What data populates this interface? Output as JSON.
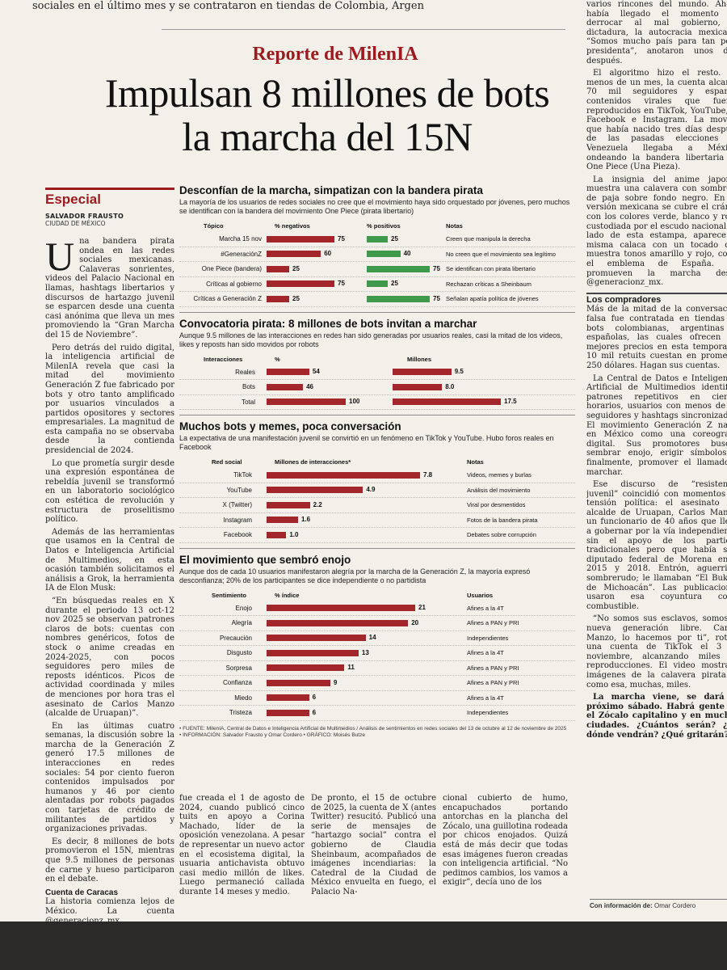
{
  "top_text": "sociales en el último mes y se contrataron en tiendas de Colombia, Argen",
  "kicker": "Reporte de MilenIA",
  "headline": "Impulsan 8 millones de bots la marcha del 15N",
  "section": "Especial",
  "byline": "SALVADOR FRAUSTO",
  "city": "CIUDAD DE MÉXICO",
  "left_column": {
    "dropcap": "U",
    "p1": "na bandera pirata ondea en las redes sociales mexicanas. Calaveras sonrientes, videos del Palacio Nacional en llamas, hashtags libertarios y discursos de hartazgo juvenil se esparcen desde una cuenta casi anónima que lleva un mes promoviendo la “Gran Marcha del 15 de Noviembre”.",
    "p2": "Pero detrás del ruido digital, la inteligencia artificial de MilenIA revela que casi la mitad del movimiento Generación Z fue fabricado por bots y otro tanto amplificado por usuarios vinculados a partidos opositores y sectores empresariales. La magnitud de esta campaña no se observaba desde la contienda presidencial de 2024.",
    "p3": "Lo que prometía surgir desde una expresión espontánea de rebeldía juvenil se transformó en un laboratorio sociológico con estética de revolución y estructura de proselitismo político.",
    "p4": "Además de las herramientas que usamos en la Central de Datos e Inteligencia Artificial de Multimedios, en esta ocasión también solicitamos el análisis a Grok, la herramienta IA de Elon Musk:",
    "p5": "“En búsquedas reales en X durante el periodo 13 oct-12 nov 2025 se observan patrones claros de bots: cuentas con nombres genéricos, fotos de stock o anime creadas en 2024-2025, con pocos seguidores pero miles de reposts idénticos. Picos de actividad coordinada y miles de menciones por hora tras el asesinato de Carlos Manzo (alcalde de Uruapan)”.",
    "p6": "En las últimas cuatro semanas, la discusión sobre la marcha de la Generación Z generó 17.5 millones de interacciones en redes sociales: 54 por ciento fueron contenidos impulsados por humanos y 46 por ciento alentadas por robots pagados con tarjetas de crédito de militantes de partidos y organizaciones privadas.",
    "p7": "Es decir, 8 millones de bots promovieron el 15N, mientras que 9.5 millones de personas de carne y hueso participaron en el debate.",
    "subhead": "Cuenta de Caracas",
    "p8": "La historia comienza lejos de México. La cuenta @generacionz_mx"
  },
  "chart1": {
    "title": "Desconfían de la marcha, simpatizan con la bandera pirata",
    "desc": "La mayoría de los usuarios de redes sociales no cree que el movimiento haya sido orquestado por jóvenes, pero muchos se identifican con la bandera del movimiento One Piece (pirata libertario)",
    "h_topic": "Tópico",
    "h_neg": "% negativos",
    "h_pos": "% positivos",
    "h_notes": "Notas"
  },
  "chart2": {
    "title": "Convocatoria pirata: 8 millones de bots invitan a marchar",
    "desc": "Aunque 9.5 millones de las interacciones en redes han sido generadas por usuarios reales, casi la mitad de los videos, likes y reposts han sido movidos por robots",
    "h_label": "Interacciones",
    "h_pct": "%",
    "h_mill": "Millones"
  },
  "chart3": {
    "title": "Muchos bots y memes, poca conversación",
    "desc": "La expectativa de una manifestación juvenil se convirtió en un fenómeno en TikTok y YouTube. Hubo foros reales en Facebook",
    "h_label": "Red social",
    "h_val": "Millones de interacciones*",
    "h_notes": "Notas"
  },
  "chart4": {
    "title": "El movimiento que sembró enojo",
    "desc": "Aunque dos de cada 10 usuarios manifestaron alegría por la marcha de la Generación Z, la mayoría expresó desconfianza; 20% de los participantes se dice independiente o no partidista",
    "h_label": "Sentimiento",
    "h_val": "% índice",
    "h_users": "Usuarios"
  },
  "chart_data": [
    {
      "type": "bar",
      "categories": [
        "Marcha 15 nov",
        "#GeneraciónZ",
        "One Piece (bandera)",
        "Críticas al gobierno",
        "Críticas a Generación Z"
      ],
      "series": [
        {
          "name": "% negativos",
          "values": [
            75,
            60,
            25,
            75,
            25
          ]
        },
        {
          "name": "% positivos",
          "values": [
            25,
            40,
            75,
            25,
            75
          ]
        }
      ],
      "notes": [
        "Creen que manipula la derecha",
        "No creen que el movimiento sea legítimo",
        "Se identifican con pirata libertario",
        "Rechazan críticas a Sheinbaum",
        "Señalan apatía política de jóvenes"
      ],
      "colors": [
        "#a2262a",
        "#3e9a4a"
      ]
    },
    {
      "type": "bar",
      "categories": [
        "Reales",
        "Bots",
        "Total"
      ],
      "series": [
        {
          "name": "%",
          "values": [
            54,
            46,
            100
          ]
        },
        {
          "name": "Millones",
          "values": [
            9.5,
            8.0,
            17.5
          ]
        }
      ],
      "value_labels_2": [
        "9.5",
        "8.0",
        "17.5"
      ],
      "colors": [
        "#a2262a"
      ]
    },
    {
      "type": "bar",
      "categories": [
        "TikTok",
        "YouTube",
        "X (Twitter)",
        "Instagram",
        "Facebook"
      ],
      "series": [
        {
          "name": "Millones de interacciones*",
          "values": [
            7.8,
            4.9,
            2.2,
            1.6,
            1.0
          ]
        }
      ],
      "value_labels": [
        "7.8",
        "4.9",
        "2.2",
        "1.6",
        "1.0"
      ],
      "notes": [
        "Videos, memes y burlas",
        "Análisis del movimiento",
        "Viral por desmentidos",
        "Fotos de la bandera pirata",
        "Debates sobre corrupción"
      ],
      "colors": [
        "#a2262a"
      ]
    },
    {
      "type": "bar",
      "categories": [
        "Enojo",
        "Alegría",
        "Precaución",
        "Disgusto",
        "Sorpresa",
        "Confianza",
        "Miedo",
        "Tristeza"
      ],
      "series": [
        {
          "name": "% índice",
          "values": [
            21,
            20,
            14,
            13,
            11,
            9,
            6,
            6
          ]
        }
      ],
      "users": [
        "Afines a la 4T",
        "Afines a PAN y PRI",
        "Independientes",
        "Afines a la 4T",
        "Afines a PAN y PRI",
        "Afines a PAN y PRI",
        "Afines a la 4T",
        "Independientes"
      ],
      "colors": [
        "#a2262a"
      ]
    }
  ],
  "sources": {
    "line1": "• FUENTE: MilenIA, Central de Datos e Inteligencia Artificial de Multimedios / Análisis de sentimientos en redes sociales del 13 de octubre al 12 de noviembre de 2025",
    "line2": "• INFORMACIÓN: Salvador Frausto y Omar Cordero • GRÁFICO: Moisés Butze"
  },
  "bottom_col2": "fue creada el 1 de agosto de 2024, cuando publicó cinco tuits en apoyo a Corina Machado, líder de la oposición venezolana. A pesar de representar un nuevo actor en el ecosistema digital, la usuaria antichavista obtuvo casi medio millón de likes. Luego permaneció callada durante 14 meses y medio.",
  "bottom_col3": "De pronto, el 15 de octubre de 2025, la cuenta de X (antes Twitter) resucitó. Publicó una serie de mensajes de “hartazgo social” contra el gobierno de Claudia Sheinbaum, acompañados de imágenes incendiarias: la Catedral de la Ciudad de México envuelta en fuego, el Palacio Na-",
  "bottom_col4": "cional cubierto de humo, encapuchados portando antorchas en la plancha del Zócalo, una guillotina rodeada por chicos enojados. Quizá está de más decir que todas esas imágenes fueron creadas con inteligencia artificial. “No pedimos cambios, los vamos a exigir”, decía uno de los",
  "right_column": {
    "p1": "varios rincones del mundo. Ahora había llegado el momento de derrocar al mal gobierno, la dictadura, la autocracia mexicana. “Somos mucho país para tan poca presidenta”, anotaron unos días después.",
    "p2": "El algoritmo hizo el resto. En menos de un mes, la cuenta alcanzó 70 mil seguidores y esparció contenidos virales que fueron reproducidos en TikTok, YouTube, X, Facebook e Instagram. La movida que había nacido tres días después de las pasadas elecciones en Venezuela llegaba a México, ondeando la bandera libertaria de One Piece (Una Pieza).",
    "p3": "La insignia del anime japonés muestra una calavera con sombrero de paja sobre fondo negro. En su versión mexicana se cubre el cráneo con los colores verde, blanco y rojo, custodiada por el escudo nacional. Al lado de esta estampa, aparece la misma calaca con un tocado que muestra tonos amarillo y rojo, como el emblema de España. Así promueven la marcha desde @generacionz_mx.",
    "subhead": "Los compradores",
    "p4": "Más de la mitad de la conversación falsa fue contratada en tiendas de bots colombianas, argentinas y españolas, las cuales ofrecen los mejores precios en esta temporada: 10 mil retuits cuestan en promedio 250 dólares. Hagan sus cuentas.",
    "p5": "La Central de Datos e Inteligencia Artificial de Multimedios identificó patrones repetitivos en ciertos horarios, usuarios con menos de 20 seguidores y hashtags sincronizados. El movimiento Generación Z nació en México como una coreografía digital. Sus promotores buscan sembrar enojo, erigir símbolos y, finalmente, promover el llamado a marchar.",
    "p6": "Ese discurso de “resistencia juvenil” coincidió con momentos de tensión política: el asesinato del alcalde de Uruapan, Carlos Manzo, un funcionario de 40 años que llegó a gobernar por la vía independiente, sin el apoyo de los partidos tradicionales pero que había sido diputado federal de Morena entre 2015 y 2018. Entrón, aguerrido, sombrerudo; le llamaban “El Bukele de Michoacán”. Las publicaciones usaron esa coyuntura como combustible.",
    "p7": "“No somos sus esclavos, somos la nueva generación libre. Carlos Manzo, lo hacemos por ti”, rotuló una cuenta de TikTok el 3 de noviembre, alcanzando miles de reproducciones. El video mostraba imágenes de la calavera pirata. Y como esa, muchas, miles.",
    "p8": "La marcha viene, se dará el próximo sábado. Habrá gente en el Zócalo capitalino y en muchas ciudades. ¿Cuántos serán? ¿De dónde vendrán? ¿Qué gritarán?"
  },
  "contributor_label": "Con información de:",
  "contributor_name": "Omar Cordero"
}
